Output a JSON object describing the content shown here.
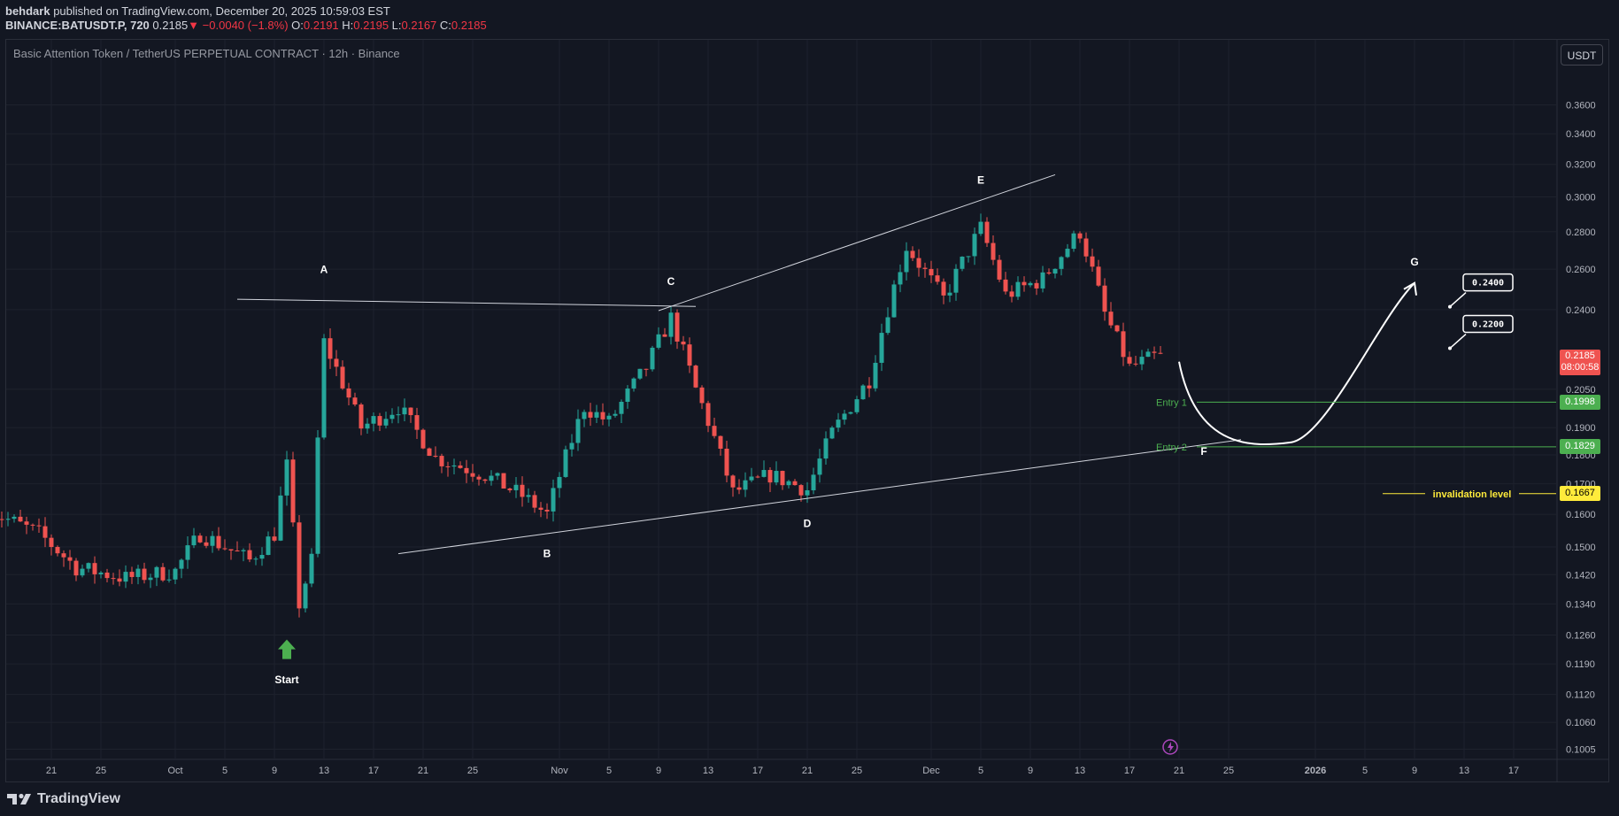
{
  "header": {
    "author": "behdark",
    "published_text": "published on TradingView.com, December 20, 2025 10:59:03 EST",
    "symbol": "BINANCE:BATUSDT.P, 720",
    "last": "0.2185",
    "change": "−0.0040 (−1.8%)",
    "o_label": "O:",
    "o_value": "0.2191",
    "h_label": "H:",
    "h_value": "0.2195",
    "l_label": "L:",
    "l_value": "0.2167",
    "c_label": "C:",
    "c_value": "0.2185"
  },
  "chart_title": "Basic Attention Token / TetherUS PERPETUAL CONTRACT · 12h · Binance",
  "currency_button": "USDT",
  "brand": "TradingView",
  "colors": {
    "background": "#131722",
    "up": "#26a69a",
    "down": "#ef5350",
    "grid": "#1e222d",
    "entry": "#4caf50",
    "invalidation": "#ffeb3b",
    "label": "#ffffff"
  },
  "chart_data": {
    "type": "candlestick",
    "timeframe": "12h",
    "price_axis_labels": [
      "0.3600",
      "0.3400",
      "0.3200",
      "0.3000",
      "0.2800",
      "0.2600",
      "0.2400",
      "0.2050",
      "0.1900",
      "0.1800",
      "0.1700",
      "0.1600",
      "0.1500",
      "0.1420",
      "0.1340",
      "0.1260",
      "0.1190",
      "0.1120",
      "0.1060",
      "0.1005"
    ],
    "price_tick_values": [
      0.36,
      0.34,
      0.32,
      0.3,
      0.28,
      0.26,
      0.24,
      0.205,
      0.19,
      0.18,
      0.17,
      0.16,
      0.15,
      0.142,
      0.134,
      0.126,
      0.119,
      0.112,
      0.106,
      0.1005
    ],
    "time_axis_labels": [
      "21",
      "25",
      "Oct",
      "5",
      "9",
      "13",
      "17",
      "21",
      "25",
      "Nov",
      "5",
      "9",
      "13",
      "17",
      "21",
      "25",
      "Dec",
      "5",
      "9",
      "13",
      "17",
      "21",
      "25",
      "2026",
      "5",
      "9",
      "13",
      "17"
    ],
    "time_axis_dates": [
      "2025-09-21",
      "2025-09-25",
      "2025-10-01",
      "2025-10-05",
      "2025-10-09",
      "2025-10-13",
      "2025-10-17",
      "2025-10-21",
      "2025-10-25",
      "2025-11-01",
      "2025-11-05",
      "2025-11-09",
      "2025-11-13",
      "2025-11-17",
      "2025-11-21",
      "2025-11-25",
      "2025-12-01",
      "2025-12-05",
      "2025-12-09",
      "2025-12-13",
      "2025-12-17",
      "2025-12-21",
      "2025-12-25",
      "2026-01-01",
      "2026-01-05",
      "2026-01-09",
      "2026-01-13",
      "2026-01-17"
    ],
    "series": [
      {
        "name": "BATUSDT.P",
        "type": "candlestick",
        "first_candle": "2025-09-16",
        "step_hours": 12,
        "close_anchors": [
          {
            "date": "2025-09-16",
            "close": 0.161
          },
          {
            "date": "2025-09-20",
            "close": 0.154
          },
          {
            "date": "2025-09-23",
            "close": 0.144
          },
          {
            "date": "2025-09-27",
            "close": 0.141
          },
          {
            "date": "2025-10-01",
            "close": 0.143
          },
          {
            "date": "2025-10-03",
            "close": 0.154
          },
          {
            "date": "2025-10-07",
            "close": 0.146
          },
          {
            "date": "2025-10-09",
            "close": 0.154
          },
          {
            "date": "2025-10-10",
            "close": 0.176
          },
          {
            "date": "2025-10-11",
            "close": 0.134
          },
          {
            "date": "2025-10-12",
            "close": 0.146
          },
          {
            "date": "2025-10-13",
            "close": 0.225
          },
          {
            "date": "2025-10-16",
            "close": 0.19
          },
          {
            "date": "2025-10-19",
            "close": 0.198
          },
          {
            "date": "2025-10-22",
            "close": 0.179
          },
          {
            "date": "2025-10-26",
            "close": 0.173
          },
          {
            "date": "2025-10-29",
            "close": 0.166
          },
          {
            "date": "2025-10-31",
            "close": 0.16
          },
          {
            "date": "2025-11-03",
            "close": 0.198
          },
          {
            "date": "2025-11-05",
            "close": 0.192
          },
          {
            "date": "2025-11-08",
            "close": 0.214
          },
          {
            "date": "2025-11-10",
            "close": 0.236
          },
          {
            "date": "2025-11-12",
            "close": 0.205
          },
          {
            "date": "2025-11-15",
            "close": 0.167
          },
          {
            "date": "2025-11-18",
            "close": 0.173
          },
          {
            "date": "2025-11-21",
            "close": 0.168
          },
          {
            "date": "2025-11-23",
            "close": 0.188
          },
          {
            "date": "2025-11-26",
            "close": 0.209
          },
          {
            "date": "2025-11-29",
            "close": 0.272
          },
          {
            "date": "2025-12-02",
            "close": 0.245
          },
          {
            "date": "2025-12-05",
            "close": 0.282
          },
          {
            "date": "2025-12-07",
            "close": 0.247
          },
          {
            "date": "2025-12-10",
            "close": 0.255
          },
          {
            "date": "2025-12-13",
            "close": 0.28
          },
          {
            "date": "2025-12-15",
            "close": 0.238
          },
          {
            "date": "2025-12-17",
            "close": 0.214
          },
          {
            "date": "2025-12-19",
            "close": 0.2185
          }
        ]
      }
    ],
    "annotations": {
      "wave_labels": [
        {
          "text": "A",
          "date": "2025-10-13",
          "price": 0.258
        },
        {
          "text": "B",
          "date": "2025-10-31",
          "price": 0.147
        },
        {
          "text": "C",
          "date": "2025-11-10",
          "price": 0.252
        },
        {
          "text": "D",
          "date": "2025-11-21",
          "price": 0.156
        },
        {
          "text": "E",
          "date": "2025-12-05",
          "price": 0.308
        },
        {
          "text": "F",
          "date": "2025-12-23",
          "price": 0.18
        },
        {
          "text": "G",
          "date": "2026-01-09",
          "price": 0.262
        },
        {
          "text": "Start",
          "date": "2025-10-10",
          "price": 0.1145
        }
      ],
      "start_arrow": {
        "date": "2025-10-10",
        "price": 0.121
      },
      "trendlines": [
        {
          "from": {
            "date": "2025-10-06",
            "price": 0.245
          },
          "to": {
            "date": "2025-11-12",
            "price": 0.2415
          }
        },
        {
          "from": {
            "date": "2025-11-09",
            "price": 0.2395
          },
          "to": {
            "date": "2025-12-11",
            "price": 0.3135
          }
        },
        {
          "from": {
            "date": "2025-10-19",
            "price": 0.148
          },
          "to": {
            "date": "2025-12-26",
            "price": 0.1855
          }
        }
      ],
      "projection_curve": [
        {
          "date": "2025-12-21",
          "price": 0.2165
        },
        {
          "date": "2025-12-30",
          "price": 0.1845
        },
        {
          "date": "2026-01-09",
          "price": 0.253
        }
      ],
      "horizontal_levels": [
        {
          "label": "Entry 1",
          "price": 0.1998,
          "from_date": "2025-12-21",
          "tag": "0.1998"
        },
        {
          "label": "Entry 2",
          "price": 0.1829,
          "from_date": "2025-12-21",
          "tag": "0.1829"
        },
        {
          "label": "invalidation level",
          "price": 0.1667,
          "from_date": "2026-01-09",
          "tag": "0.1667"
        }
      ],
      "target_notes": [
        {
          "text": "0.2400",
          "date": "2026-01-14",
          "price": 0.2535
        },
        {
          "text": "0.2200",
          "date": "2026-01-14",
          "price": 0.2335
        }
      ],
      "last_price_tag": {
        "price": "0.2185",
        "countdown": "08:00:58"
      }
    }
  }
}
